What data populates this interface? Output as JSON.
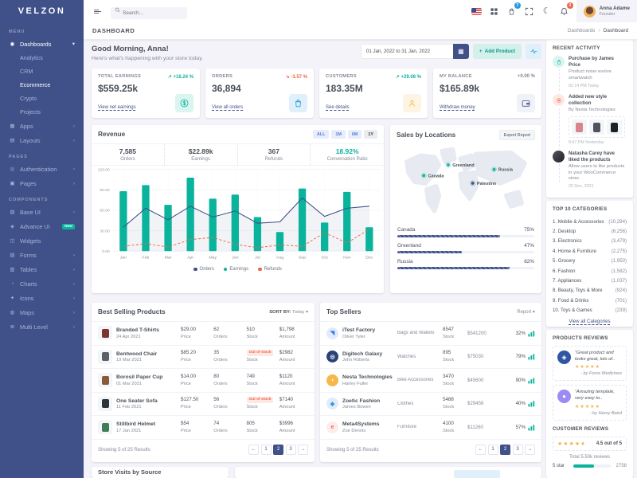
{
  "theme": {
    "sidebar_bg": "#405189",
    "primary": "#405189",
    "success": "#0ab39c",
    "danger": "#f06548",
    "warning": "#f7b84b",
    "info": "#299cdb",
    "body_bg": "#f3f3f9",
    "muted": "#878a99"
  },
  "icons": {
    "moon": "☾",
    "calendar": "▦",
    "plus": "+",
    "caret": "▾",
    "chevron_right": "›",
    "chevron_down": "▾",
    "star": "★"
  },
  "sidebar": {
    "logo": "VELZON",
    "icon_glyphs": {
      "dashboard": "◉",
      "apps": "▦",
      "layouts": "▤",
      "auth": "◎",
      "pages": "▣",
      "baseui": "▧",
      "advanceui": "◈",
      "widgets": "◫",
      "forms": "▨",
      "tables": "▥",
      "charts": "◔",
      "icons": "✦",
      "maps": "◍",
      "multilevel": "≣"
    },
    "groups": [
      {
        "heading": "MENU",
        "items": [
          {
            "label": "Dashboards",
            "icon": "dashboard",
            "chevron": "down",
            "active": true,
            "children": [
              {
                "label": "Analytics"
              },
              {
                "label": "CRM"
              },
              {
                "label": "Ecommerce",
                "active": true
              },
              {
                "label": "Crypto"
              },
              {
                "label": "Projects"
              }
            ]
          },
          {
            "label": "Apps",
            "icon": "apps",
            "chevron": "right"
          },
          {
            "label": "Layouts",
            "icon": "layouts",
            "chevron": "right"
          }
        ]
      },
      {
        "heading": "PAGES",
        "items": [
          {
            "label": "Authentication",
            "icon": "auth",
            "chevron": "right"
          },
          {
            "label": "Pages",
            "icon": "pages",
            "chevron": "right"
          }
        ]
      },
      {
        "heading": "COMPONENTS",
        "items": [
          {
            "label": "Base UI",
            "icon": "baseui",
            "chevron": "right"
          },
          {
            "label": "Advance UI",
            "icon": "advanceui",
            "badge": "New"
          },
          {
            "label": "Widgets",
            "icon": "widgets"
          },
          {
            "label": "Forms",
            "icon": "forms",
            "chevron": "right"
          },
          {
            "label": "Tables",
            "icon": "tables",
            "chevron": "right"
          },
          {
            "label": "Charts",
            "icon": "charts",
            "chevron": "right"
          },
          {
            "label": "Icons",
            "icon": "icons",
            "chevron": "right"
          },
          {
            "label": "Maps",
            "icon": "maps",
            "chevron": "right"
          },
          {
            "label": "Multi Level",
            "icon": "multilevel",
            "chevron": "right"
          }
        ]
      }
    ]
  },
  "topbar": {
    "search_placeholder": "Search...",
    "cart_badge": "7",
    "bell_badge": "3",
    "user": {
      "name": "Anna Adame",
      "role": "Founder"
    }
  },
  "breadcrumb": {
    "page_title": "DASHBOARD",
    "path": [
      "Dashboards",
      "Dashboard"
    ]
  },
  "page_header": {
    "greeting": "Good Morning, Anna!",
    "subtitle": "Here's what's happening with your store today.",
    "date_range": "01 Jan, 2022 to 31 Jan, 2022",
    "add_product_label": "Add Product"
  },
  "stats": {
    "cards": [
      {
        "label": "TOTAL EARNINGS",
        "arrow": "↗",
        "delta": "+16.24 %",
        "trend": "up",
        "value": "$559.25k",
        "link": "View net earnings",
        "icon": "dollar",
        "accent": "#0ab39c",
        "tile_bg": "#daf4f0"
      },
      {
        "label": "ORDERS",
        "arrow": "↘",
        "delta": "-3.57 %",
        "trend": "down",
        "value": "36,894",
        "link": "View all orders",
        "icon": "bag",
        "accent": "#299cdb",
        "tile_bg": "#dff0fa"
      },
      {
        "label": "CUSTOMERS",
        "arrow": "↗",
        "delta": "+29.08 %",
        "trend": "up",
        "value": "183.35M",
        "link": "See details",
        "icon": "users",
        "accent": "#f7b84b",
        "tile_bg": "#fef4e4"
      },
      {
        "label": "MY BALANCE",
        "arrow": "",
        "delta": "+0.00 %",
        "trend": "flat",
        "value": "$165.89k",
        "link": "Withdraw money",
        "icon": "wallet",
        "accent": "#405189",
        "tile_bg": "#eff2f7"
      }
    ]
  },
  "revenue": {
    "title": "Revenue",
    "tabs": [
      {
        "label": "ALL"
      },
      {
        "label": "1M"
      },
      {
        "label": "6M"
      },
      {
        "label": "1Y",
        "active": true
      }
    ],
    "summary": [
      {
        "value": "7,585",
        "label": "Orders"
      },
      {
        "value": "$22.89k",
        "label": "Earnings"
      },
      {
        "value": "367",
        "label": "Refunds"
      },
      {
        "value": "18.92%",
        "label": "Conversation Ratio",
        "accent": "#0ab39c"
      }
    ]
  },
  "chart_data": {
    "type": "combo",
    "x": [
      "Jan",
      "Feb",
      "Mar",
      "Apr",
      "May",
      "Jun",
      "Jul",
      "Aug",
      "Sep",
      "Oct",
      "Nov",
      "Dec"
    ],
    "series": [
      {
        "name": "Orders",
        "type": "area-line",
        "color": "#405189",
        "values": [
          35,
          63,
          46,
          66,
          50,
          59,
          41,
          43,
          78,
          51,
          63,
          66
        ]
      },
      {
        "name": "Earnings",
        "type": "bar",
        "color": "#0ab39c",
        "values": [
          88,
          97,
          68,
          108,
          77,
          83,
          50,
          28,
          92,
          42,
          87,
          35
        ]
      },
      {
        "name": "Refunds",
        "type": "dashed-line",
        "color": "#f06548",
        "values": [
          7,
          11,
          6,
          17,
          20,
          10,
          5,
          9,
          7,
          27,
          12,
          32
        ]
      }
    ],
    "ylim": [
      0,
      120
    ],
    "yticks": [
      "0.00",
      "30.00",
      "60.00",
      "90.00",
      "120.00"
    ],
    "grid": true,
    "legend_position": "bottom"
  },
  "sales_by_locations": {
    "title": "Sales by Locations",
    "button": "Export Report",
    "markers": [
      {
        "name": "Greenland",
        "x": 64,
        "y": 26,
        "color": "#0ab39c"
      },
      {
        "name": "Canada",
        "x": 32,
        "y": 40,
        "color": "#0ab39c"
      },
      {
        "name": "Russia",
        "x": 124,
        "y": 32,
        "color": "#0ab39c"
      },
      {
        "name": "Palestine",
        "x": 96,
        "y": 50,
        "color": "#405189"
      }
    ],
    "locations": [
      {
        "name": "Canada",
        "pct": 75
      },
      {
        "name": "Greenland",
        "pct": 47
      },
      {
        "name": "Russia",
        "pct": 82
      }
    ]
  },
  "best_selling": {
    "title": "Best Selling Products",
    "sort_label": "SORT BY:",
    "sort_value": "Today",
    "col_labels": {
      "price": "Price",
      "orders": "Orders",
      "stock": "Stock",
      "amount": "Amount"
    },
    "out_of_stock": "Out of stock",
    "rows": [
      {
        "name": "Branded T-Shirts",
        "date": "24 Apr 2021",
        "price": "$29.00",
        "orders": "62",
        "stock": "510",
        "out": false,
        "amount": "$1,798",
        "swatch": "#7e342f"
      },
      {
        "name": "Bentwood Chair",
        "date": "19 Mar 2021",
        "price": "$85.20",
        "orders": "35",
        "stock": "",
        "out": true,
        "amount": "$2982",
        "swatch": "#5a5f68"
      },
      {
        "name": "Borosil Paper Cup",
        "date": "01 Mar 2021",
        "price": "$14.00",
        "orders": "80",
        "stock": "749",
        "out": false,
        "amount": "$1120",
        "swatch": "#8a5a3b"
      },
      {
        "name": "One Seater Sofa",
        "date": "11 Feb 2021",
        "price": "$127.50",
        "orders": "56",
        "stock": "",
        "out": true,
        "amount": "$7140",
        "swatch": "#2f333a"
      },
      {
        "name": "Stillbird Helmet",
        "date": "17 Jan 2021",
        "price": "$54",
        "orders": "74",
        "stock": "805",
        "out": false,
        "amount": "$3996",
        "swatch": "#3f7d58"
      }
    ],
    "footer": "Showing 5 of 25 Results",
    "pagination": {
      "items": [
        "←",
        "1",
        "2",
        "3",
        "→"
      ],
      "active_index": 2
    }
  },
  "top_sellers": {
    "title": "Top Sellers",
    "menu": "Report",
    "stock_label": "Stock",
    "rows": [
      {
        "company": "iTest Factory",
        "owner": "Oliver Tyler",
        "product": "Bags and Wallets",
        "stock": "8547",
        "amount": "$541200",
        "pct": "32%",
        "logo_bg": "#e2eafb",
        "logo_fg": "#3577f1",
        "logo_glyph": "◥"
      },
      {
        "company": "Digitech Galaxy",
        "owner": "John Roberts",
        "product": "Watches",
        "stock": "895",
        "amount": "$75030",
        "pct": "79%",
        "logo_bg": "#2c4177",
        "logo_fg": "#ffffff",
        "logo_glyph": "◎"
      },
      {
        "company": "Nesta Technologies",
        "owner": "Harley F‎uller",
        "product": "Bike Accessories",
        "stock": "3470",
        "amount": "$45600",
        "pct": "90%",
        "logo_bg": "#f7b84b",
        "logo_fg": "#ffffff",
        "logo_glyph": "◖"
      },
      {
        "company": "Zoetic Fashion",
        "owner": "James Bowen",
        "product": "Clothes",
        "stock": "5488",
        "amount": "$29456",
        "pct": "40%",
        "logo_bg": "#e2eafb",
        "logo_fg": "#299cdb",
        "logo_glyph": "◆"
      },
      {
        "company": "Meta4Systems",
        "owner": "Zoe Dennis",
        "product": "Furniture",
        "stock": "4100",
        "amount": "$11260",
        "pct": "57%",
        "logo_bg": "#fdecec",
        "logo_fg": "#f06548",
        "logo_glyph": "e"
      }
    ],
    "footer": "Showing 5 of 25 Results",
    "pagination": {
      "items": [
        "←",
        "1",
        "2",
        "3",
        "→"
      ],
      "active_index": 2
    }
  },
  "recent_activity": {
    "title": "RECENT ACTIVITY",
    "items": [
      {
        "title": "Purchase by James Price",
        "desc": "Product noise evolve smartwatch",
        "time": "02:14 PM Today",
        "icon": "bag",
        "color": "#0ab39c",
        "bg": "#daf4f0"
      },
      {
        "title": "Added new style collection",
        "desc": "By Nesta Technologies",
        "time": "9:47 PM Yesterday",
        "icon": "target",
        "color": "#f06548",
        "bg": "#fde8e4",
        "thumbs": [
          "#d9838d",
          "#52525e",
          "#1f1f26"
        ]
      },
      {
        "title": "Natasha Carey have liked the products",
        "desc": "Allow users to like products in your WooCommerce store.",
        "time": "25 Dec, 2021",
        "avatar": true
      }
    ]
  },
  "top_categories": {
    "title": "TOP 10 CATEGORIES",
    "items": [
      {
        "name": "1. Mobile & Accessories",
        "count": "(10,294)"
      },
      {
        "name": "2. Desktop",
        "count": "(6,256)"
      },
      {
        "name": "3. Electronics",
        "count": "(3,479)"
      },
      {
        "name": "4. Home & Furniture",
        "count": "(2,275)"
      },
      {
        "name": "5. Grocery",
        "count": "(1,950)"
      },
      {
        "name": "6. Fashion",
        "count": "(1,582)"
      },
      {
        "name": "7. Appliances",
        "count": "(1,037)"
      },
      {
        "name": "8. Beauty, Toys & More",
        "count": "(924)"
      },
      {
        "name": "9. Food & Drinks",
        "count": "(701)"
      },
      {
        "name": "10. Toys & Games",
        "count": "(239)"
      }
    ],
    "link": "View all Categories"
  },
  "products_reviews": {
    "title": "PRODUCTS REVIEWS",
    "items": [
      {
        "quote": "“Great product and looks great, lots of..",
        "stars": 5,
        "author": "- by Force Medicines",
        "avatar_bg": "#2f55a4",
        "avatar_glyph": "◈"
      },
      {
        "quote": "“Amazing template, very easy to..",
        "stars": 5,
        "author": "- by Henry Baird",
        "avatar_bg": "#9b8bf4",
        "avatar_glyph": "●"
      }
    ]
  },
  "customer_reviews": {
    "title": "CUSTOMER REVIEWS",
    "stars": 4.5,
    "score": "4.5 out of 5",
    "total": "Total 5.50k reviews",
    "rows": [
      {
        "label": "5 star",
        "pct": 55,
        "count": "2758"
      }
    ]
  },
  "store_visits": {
    "title": "Store Visits by Source"
  }
}
